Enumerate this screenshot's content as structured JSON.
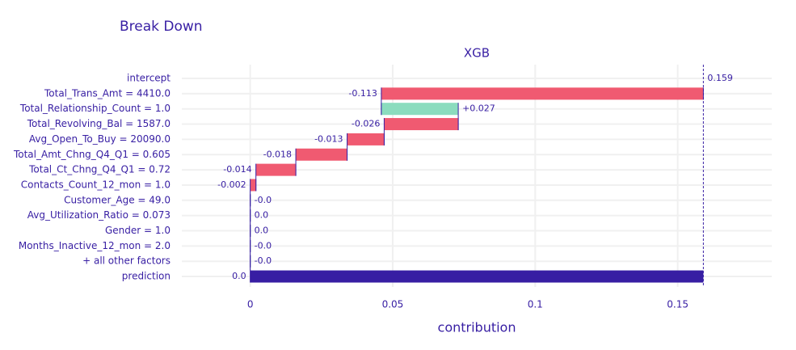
{
  "chart_data": {
    "type": "waterfall",
    "title": "Break Down",
    "subtitle": "XGB",
    "x_label": "contribution",
    "categories": [
      "intercept",
      "Total_Trans_Amt = 4410.0",
      "Total_Relationship_Count = 1.0",
      "Total_Revolving_Bal = 1587.0",
      "Avg_Open_To_Buy = 20090.0",
      "Total_Amt_Chng_Q4_Q1 = 0.605",
      "Total_Ct_Chng_Q4_Q1 = 0.72",
      "Contacts_Count_12_mon = 1.0",
      "Customer_Age = 49.0",
      "Avg_Utilization_Ratio = 0.073",
      "Gender = 1.0",
      "Months_Inactive_12_mon = 2.0",
      "+ all other factors",
      "prediction"
    ],
    "values": [
      0.159,
      -0.113,
      0.027,
      -0.026,
      -0.013,
      -0.018,
      -0.014,
      -0.002,
      0,
      0,
      0,
      0,
      0,
      0
    ],
    "value_labels": [
      "0.159",
      "-0.113",
      "+0.027",
      "-0.026",
      "-0.013",
      "-0.018",
      "-0.014",
      "-0.002",
      "-0.0",
      "0.0",
      "0.0",
      "-0.0",
      "-0.0",
      "0.0"
    ],
    "colors": {
      "negative": "#f05a71",
      "positive": "#8bdcbe",
      "total": "#371ea3"
    },
    "xlim": [
      -0.024,
      0.183
    ],
    "xticks": [
      0,
      0.05,
      0.1,
      0.15
    ],
    "grid": true
  }
}
